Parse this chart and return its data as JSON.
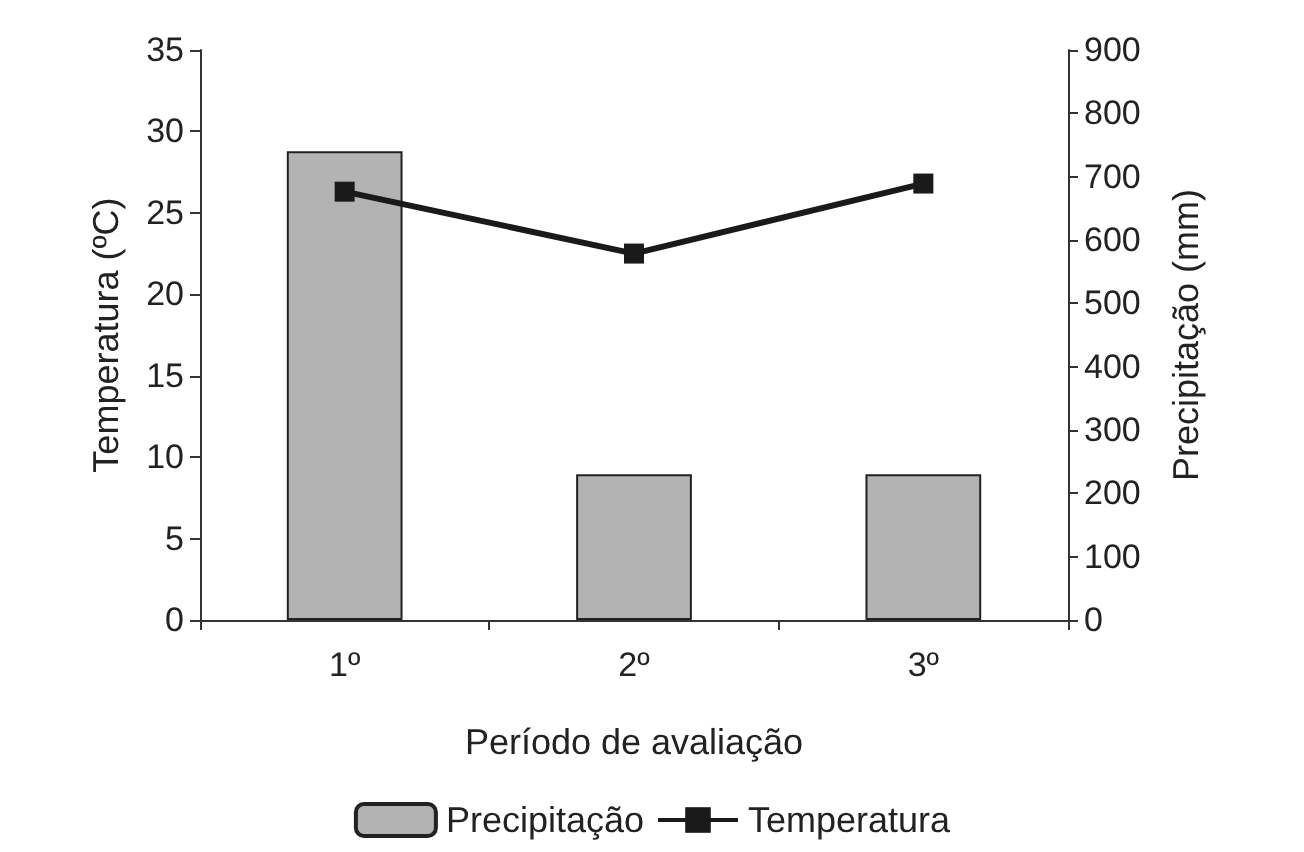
{
  "chart_data": {
    "type": "bar",
    "xlabel": "Período de avaliação",
    "ylabel": "Temperatura (ºC)",
    "y2label": "Precipitação (mm)",
    "categories": [
      "1º",
      "2º",
      "3º"
    ],
    "series": [
      {
        "name": "Precipitação",
        "axis": "y2",
        "color": "#b3b3b3",
        "values": [
          740,
          230,
          230
        ]
      },
      {
        "name": "Temperatura",
        "type": "line",
        "axis": "y",
        "color": "#1a1a1a",
        "values": [
          26.3,
          22.5,
          26.8
        ]
      }
    ],
    "ylim": [
      0,
      35
    ],
    "yticks": [
      0,
      5,
      10,
      15,
      20,
      25,
      30,
      35
    ],
    "y2lim": [
      0,
      900
    ],
    "y2ticks": [
      0,
      100,
      200,
      300,
      400,
      500,
      600,
      700,
      800,
      900
    ],
    "grid": false,
    "legend": "bottom",
    "marker": "square",
    "line_style": "solid"
  }
}
